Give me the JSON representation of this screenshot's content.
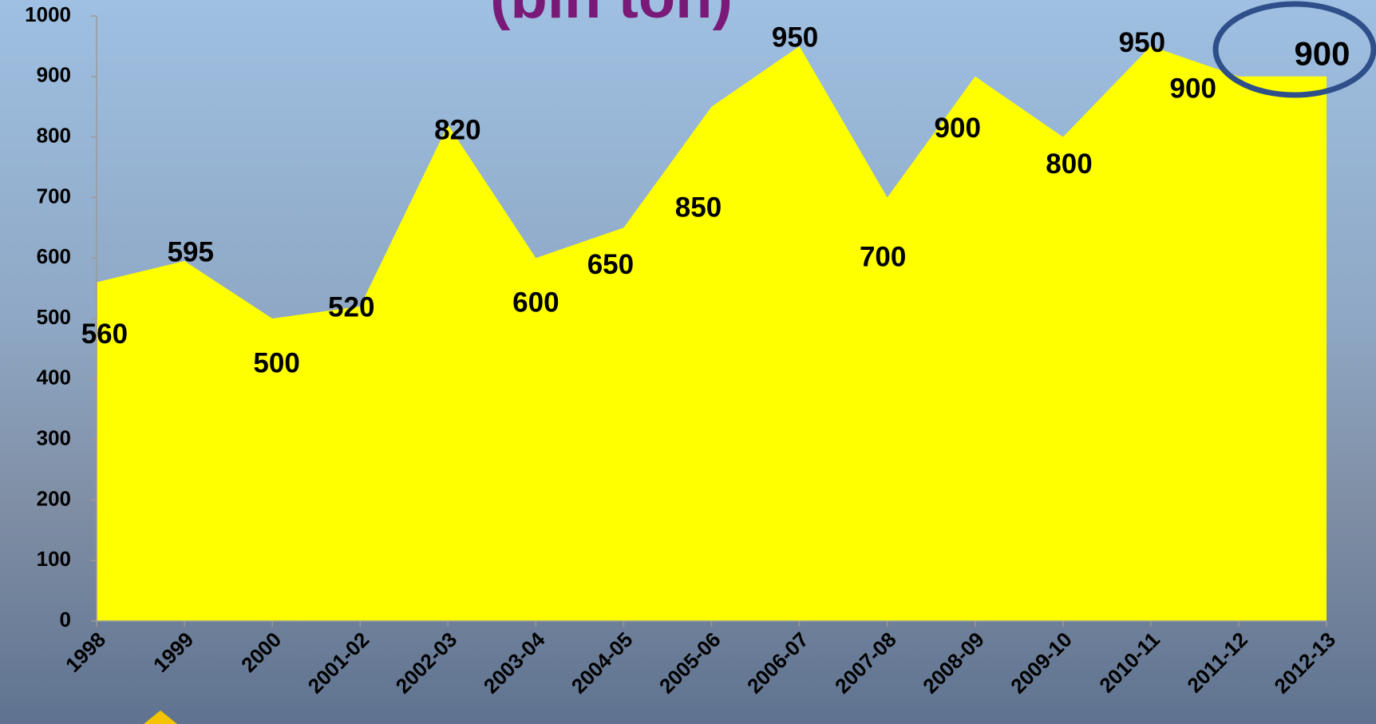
{
  "chart_data": {
    "type": "area",
    "title": "(bin ton)",
    "categories": [
      "1998",
      "1999",
      "2000",
      "2001-02",
      "2002-03",
      "2003-04",
      "2004-05",
      "2005-06",
      "2006-07",
      "2007-08",
      "2008-09",
      "2009-10",
      "2010-11",
      "2011-12",
      "2012-13"
    ],
    "values": [
      560,
      595,
      500,
      520,
      820,
      600,
      650,
      850,
      950,
      700,
      900,
      800,
      950,
      900,
      900
    ],
    "color": "#ffff00",
    "ylim": [
      0,
      1000
    ],
    "yticks": [
      0,
      100,
      200,
      300,
      400,
      500,
      600,
      700,
      800,
      900,
      1000
    ],
    "grid": false
  }
}
